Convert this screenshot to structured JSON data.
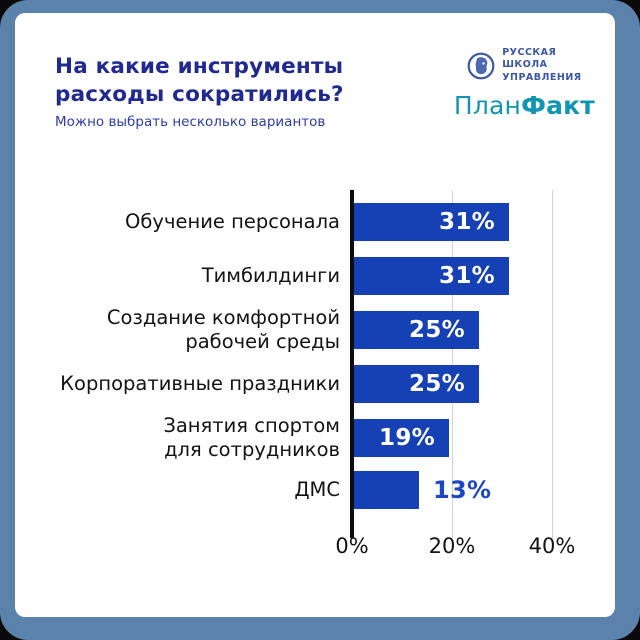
{
  "header": {
    "title": "На какие инструменты\nрасходы сократились?",
    "subtitle": "Можно выбрать несколько вариантов",
    "rsu_logo_text": "РУССКАЯ\nШКОЛА\nУПРАВЛЕНИЯ",
    "planfakt_regular": "План",
    "planfakt_bold": "Факт"
  },
  "colors": {
    "frame": "#5b82ab",
    "card": "#ffffff",
    "title": "#20298f",
    "subtitle": "#2e3da9",
    "bar": "#1641b5",
    "value_inside": "#ffffff",
    "value_outside": "#1c47c4",
    "planfakt": "#1295b2",
    "rsu_blue": "#3a57a8",
    "gridline": "#cfd2d6",
    "axis": "#0c0c0c"
  },
  "chart_data": {
    "type": "bar",
    "orientation": "horizontal",
    "title": "На какие инструменты расходы сократились?",
    "subtitle": "Можно выбрать несколько вариантов",
    "categories": [
      "Обучение персонала",
      "Тимбилдинги",
      "Создание комфортной\nрабочей среды",
      "Корпоративные праздники",
      "Занятия спортом\nдля сотрудников",
      "ДМС"
    ],
    "values": [
      31,
      31,
      25,
      25,
      19,
      13
    ],
    "value_labels": [
      "31%",
      "31%",
      "25%",
      "25%",
      "19%",
      "13%"
    ],
    "unit": "%",
    "xticks": [
      {
        "value": 0,
        "label": "0%"
      },
      {
        "value": 20,
        "label": "20%"
      },
      {
        "value": 40,
        "label": "40%"
      }
    ],
    "xlim": [
      0,
      40
    ],
    "grid": true,
    "legend": false
  }
}
